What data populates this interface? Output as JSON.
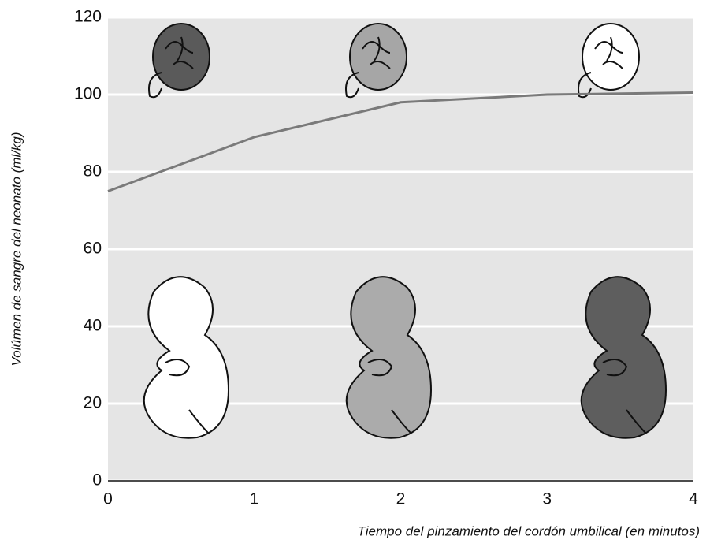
{
  "chart_data": {
    "type": "line",
    "y_label": "Volúmen de sangre del neonato (ml/kg)",
    "x_label": "Tiempo del pinzamiento del cordón umbilical (en minutos)",
    "x": [
      0,
      1,
      2,
      3,
      4
    ],
    "series": [
      {
        "color": "#7a7a7a",
        "values": [
          75,
          89,
          98,
          100,
          100.5
        ]
      }
    ],
    "xlim": [
      0,
      4
    ],
    "xticks": [
      0,
      1,
      2,
      3,
      4
    ],
    "ylim": [
      0,
      120
    ],
    "yticks": [
      0,
      20,
      40,
      60,
      80,
      100,
      120
    ],
    "grid": true
  }
}
